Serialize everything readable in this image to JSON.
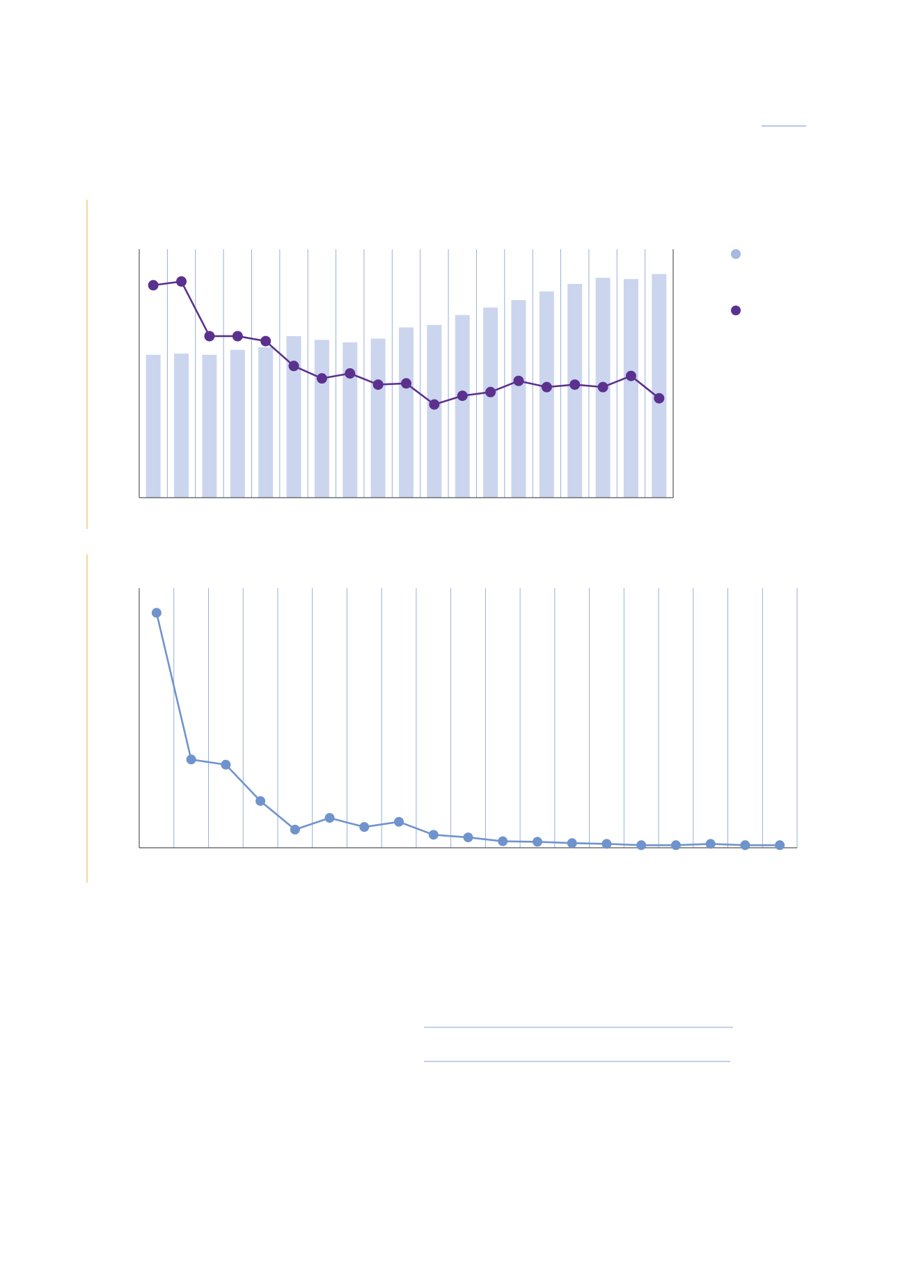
{
  "colors": {
    "bar": "#cbd5ee",
    "line_top": "#5b318e",
    "line_bottom": "#6f93cd",
    "grid": "#8aa6d6",
    "axis": "#555555",
    "side_rule": "#f2c46e",
    "decor_line": "#9fb4dd",
    "legend_bar": "#a6b8e3",
    "legend_line": "#5b318e"
  },
  "chart_data": [
    {
      "type": "bar",
      "combo": "bar+line",
      "dual_axis": true,
      "categories_count": 19,
      "series": [
        {
          "kind": "bar",
          "values": [
            57.5,
            58,
            57.5,
            59.5,
            60.5,
            65,
            63.5,
            62.5,
            64,
            68.5,
            69.5,
            73.5,
            76.5,
            79.5,
            83,
            86,
            88.5,
            88,
            90
          ]
        },
        {
          "kind": "line",
          "values": [
            85.5,
            87,
            65,
            65,
            63,
            53,
            48,
            50,
            45.5,
            46,
            37.5,
            41,
            42.5,
            47,
            44.5,
            45.5,
            44.5,
            49,
            40
          ]
        }
      ],
      "ylim": [
        0,
        100
      ],
      "y2lim": [
        0,
        100
      ],
      "grid": "vertical",
      "legend": "right"
    },
    {
      "type": "line",
      "categories_count": 19,
      "series": [
        {
          "kind": "line",
          "values": [
            90.5,
            34,
            32,
            18,
            7,
            11.5,
            8,
            10,
            5,
            4,
            2.5,
            2.3,
            1.8,
            1.5,
            1,
            1,
            1.5,
            1,
            1
          ]
        }
      ],
      "ylim": [
        0,
        100
      ],
      "grid": "vertical"
    }
  ]
}
